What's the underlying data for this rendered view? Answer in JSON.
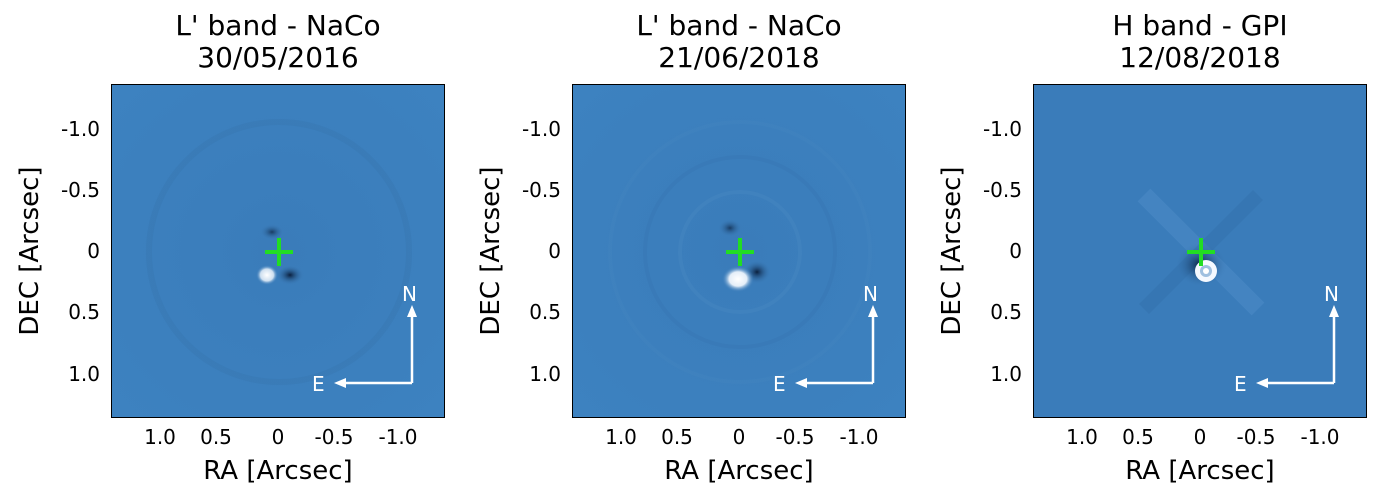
{
  "panels": [
    {
      "title_line1": "L' band - NaCo",
      "title_line2": "30/05/2016",
      "instrument": "NaCo"
    },
    {
      "title_line1": "L' band - NaCo",
      "title_line2": "21/06/2018",
      "instrument": "NaCo"
    },
    {
      "title_line1": "H band - GPI",
      "title_line2": "12/08/2018",
      "instrument": "GPI"
    }
  ],
  "axes": {
    "xlabel": "RA [Arcsec]",
    "ylabel": "DEC [Arcsec]",
    "xticks": [
      "1.0",
      "0.5",
      "0",
      "-0.5",
      "-1.0"
    ],
    "yticks": [
      "-1.0",
      "-0.5",
      "0",
      "0.5",
      "1.0"
    ]
  },
  "compass": {
    "north": "N",
    "east": "E"
  },
  "colors": {
    "background": "#3a7ebd",
    "marker": "#22dd22",
    "arrow": "#ffffff"
  }
}
